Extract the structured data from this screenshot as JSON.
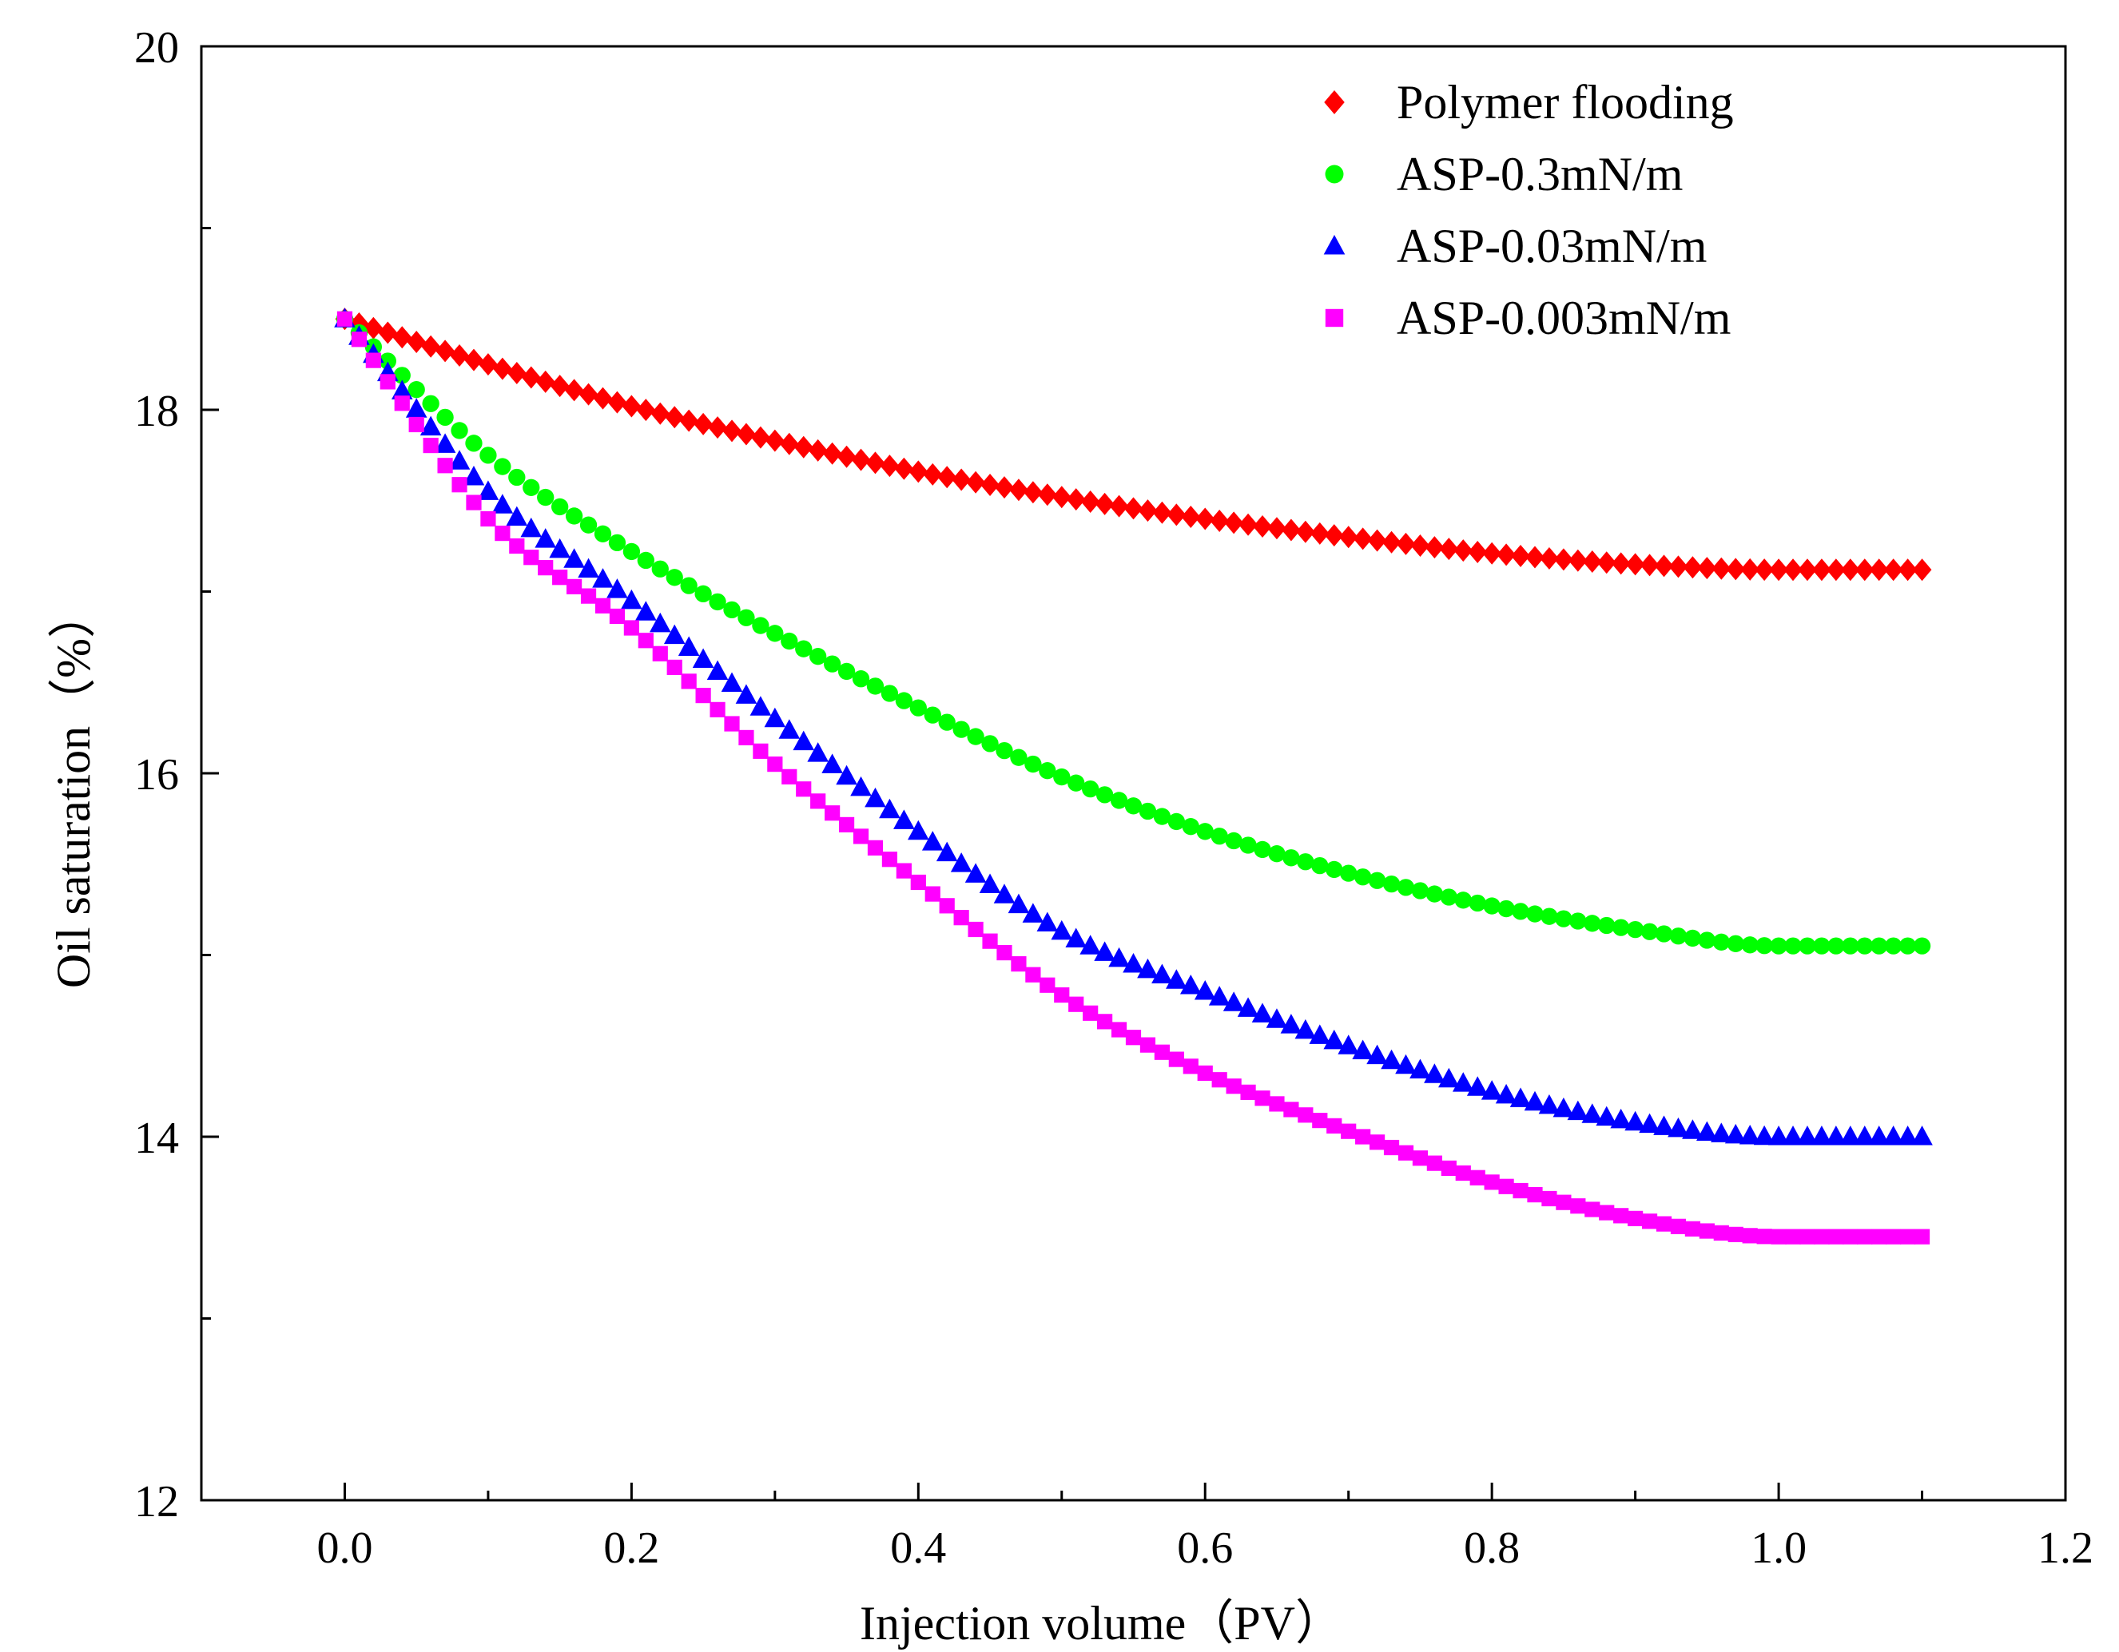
{
  "chart_data": {
    "type": "scatter",
    "title": "",
    "xlabel": "Injection volume（PV）",
    "ylabel": "Oil saturation（%）",
    "xlim": [
      -0.1,
      1.2
    ],
    "ylim": [
      12,
      20
    ],
    "xticks": [
      "0.0",
      "0.2",
      "0.4",
      "0.6",
      "0.8",
      "1.0",
      "1.2"
    ],
    "yticks": [
      "12",
      "14",
      "16",
      "18",
      "20"
    ],
    "legend_position": "top-right",
    "grid": false,
    "series": [
      {
        "name": "Polymer flooding",
        "color": "#ff0000",
        "marker": "diamond",
        "x": [
          0.0,
          0.1,
          0.2,
          0.3,
          0.4,
          0.5,
          0.6,
          0.7,
          0.8,
          0.9,
          1.0,
          1.1
        ],
        "y": [
          18.5,
          18.25,
          18.02,
          17.83,
          17.66,
          17.52,
          17.4,
          17.3,
          17.21,
          17.15,
          17.12,
          17.12
        ]
      },
      {
        "name": "ASP-0.3mN/m",
        "color": "#00ff00",
        "marker": "circle",
        "x": [
          0.0,
          0.1,
          0.2,
          0.3,
          0.4,
          0.5,
          0.6,
          0.7,
          0.8,
          0.9,
          1.0,
          1.1
        ],
        "y": [
          18.5,
          17.75,
          17.22,
          16.77,
          16.36,
          15.98,
          15.68,
          15.45,
          15.27,
          15.14,
          15.05,
          15.05
        ]
      },
      {
        "name": "ASP-0.03mN/m",
        "color": "#0000ff",
        "marker": "triangle",
        "x": [
          0.0,
          0.1,
          0.2,
          0.3,
          0.4,
          0.5,
          0.6,
          0.7,
          0.8,
          0.9,
          1.0,
          1.1
        ],
        "y": [
          18.5,
          17.55,
          16.95,
          16.3,
          15.68,
          15.13,
          14.8,
          14.5,
          14.25,
          14.08,
          14.0,
          14.0
        ]
      },
      {
        "name": "ASP-0.003mN/m",
        "color": "#ff00ff",
        "marker": "square",
        "x": [
          0.0,
          0.1,
          0.2,
          0.3,
          0.4,
          0.5,
          0.6,
          0.7,
          0.8,
          0.9,
          1.0,
          1.1
        ],
        "y": [
          18.5,
          17.4,
          16.8,
          16.05,
          15.4,
          14.78,
          14.35,
          14.03,
          13.75,
          13.55,
          13.45,
          13.45
        ]
      }
    ]
  }
}
